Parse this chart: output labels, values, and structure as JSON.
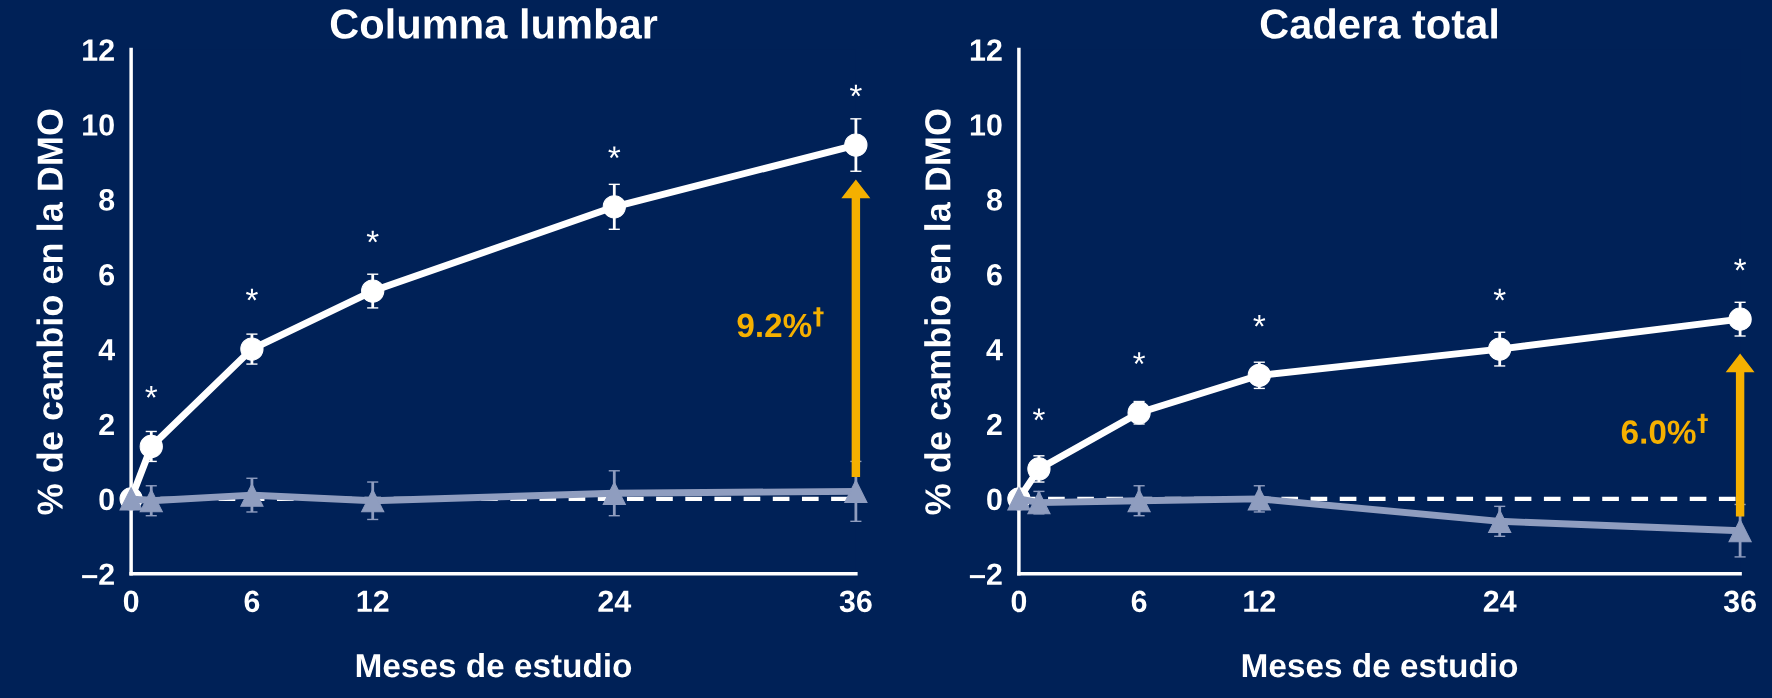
{
  "chart_data": [
    {
      "type": "line",
      "title": "Columna lumbar",
      "xlabel": "Meses de estudio",
      "ylabel": "% de cambio en la DMO",
      "x": [
        0,
        1,
        6,
        12,
        24,
        36
      ],
      "xlim": [
        0,
        36
      ],
      "xticks": [
        0,
        6,
        12,
        24,
        36
      ],
      "ylim": [
        -2,
        12
      ],
      "yticks": [
        {
          "value": -2,
          "label": "–2"
        },
        0,
        2,
        4,
        6,
        8,
        10,
        12
      ],
      "grid": false,
      "legend": false,
      "series": [
        {
          "color": "#ffffff",
          "marker": "circle",
          "values": [
            0,
            1.4,
            4.0,
            5.55,
            7.8,
            9.45
          ],
          "errors": [
            null,
            0.4,
            0.4,
            0.45,
            0.6,
            0.7
          ]
        },
        {
          "color": "#8f9dbf",
          "marker": "triangle",
          "values": [
            0,
            -0.05,
            0.1,
            -0.05,
            0.15,
            0.2
          ],
          "errors": [
            null,
            0.4,
            0.45,
            0.5,
            0.6,
            0.8
          ]
        }
      ],
      "ref_lines": [
        {
          "axis": "y",
          "value": 0,
          "color": "#ffffff",
          "line_style": "dashed"
        }
      ],
      "annotations": [
        {
          "text": "*",
          "x": 1,
          "y": 1.4
        },
        {
          "text": "*",
          "x": 6,
          "y": 4.0
        },
        {
          "text": "*",
          "x": 12,
          "y": 5.55
        },
        {
          "text": "*",
          "x": 24,
          "y": 7.8
        },
        {
          "text": "*",
          "x": 36,
          "y": 9.45
        },
        "9.2%$^{†}$"
      ]
    },
    {
      "type": "line",
      "title": "Cadera total",
      "xlabel": "Meses de estudio",
      "ylabel": "% de cambio en la DMO",
      "x": [
        0,
        1,
        6,
        12,
        24,
        36
      ],
      "xlim": [
        0,
        36
      ],
      "xticks": [
        0,
        6,
        12,
        24,
        36
      ],
      "ylim": [
        -2,
        12
      ],
      "yticks": [
        {
          "value": -2,
          "label": "–2"
        },
        0,
        2,
        4,
        6,
        8,
        10,
        12
      ],
      "grid": false,
      "legend": false,
      "series": [
        {
          "color": "#ffffff",
          "marker": "circle",
          "values": [
            0,
            0.8,
            2.3,
            3.3,
            4.0,
            4.8
          ],
          "errors": [
            null,
            0.35,
            0.3,
            0.35,
            0.45,
            0.45
          ]
        },
        {
          "color": "#8f9dbf",
          "marker": "triangle",
          "values": [
            0,
            -0.1,
            -0.05,
            0,
            -0.6,
            -0.85
          ],
          "errors": [
            null,
            0.3,
            0.4,
            0.35,
            0.4,
            0.7
          ]
        }
      ],
      "ref_lines": [
        {
          "axis": "y",
          "value": 0,
          "color": "#ffffff",
          "line_style": "dashed"
        }
      ],
      "annotations": [
        {
          "text": "*",
          "x": 1,
          "y": 0.8
        },
        {
          "text": "*",
          "x": 6,
          "y": 2.3
        },
        {
          "text": "*",
          "x": 12,
          "y": 3.3
        },
        {
          "text": "*",
          "x": 24,
          "y": 4.0
        },
        {
          "text": "*",
          "x": 36,
          "y": 4.8
        },
        "6.0%$^{†}$"
      ]
    }
  ]
}
